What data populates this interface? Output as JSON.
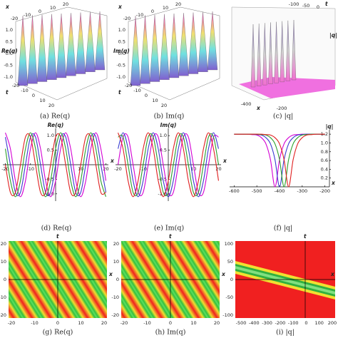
{
  "panels": {
    "a": {
      "caption": "(a) Re(q)",
      "x_label": "x",
      "t_label": "t",
      "z_label": "Re(q)",
      "x_ticks": [
        -20,
        -10,
        0,
        10,
        20
      ],
      "z_ticks": [
        "1.0",
        "0.5",
        "0.0",
        "-0.5",
        "-1.0"
      ],
      "t_ticks": [
        -20,
        -10,
        0,
        10,
        20
      ]
    },
    "b": {
      "caption": "(b) Im(q)",
      "x_label": "x",
      "t_label": "t",
      "z_label": "Im(q)",
      "x_ticks": [
        -20,
        -10,
        0,
        10,
        20
      ],
      "z_ticks": [
        "1.0",
        "0.5",
        "0.0",
        "-0.5",
        "-1.0"
      ],
      "t_ticks": [
        -20,
        -10,
        0,
        10,
        20
      ]
    },
    "c": {
      "caption": "(c) |q|",
      "x_label": "x",
      "t_label": "t",
      "z_label": "|q|",
      "x_ticks": [
        -400,
        -200
      ],
      "t_ticks": [
        -100,
        -50,
        0
      ]
    },
    "g": {
      "caption": "(g) Re(q)",
      "x_label": "x",
      "t_label": "t",
      "x_ticks": [
        -20,
        -10,
        0,
        10,
        20
      ],
      "t_ticks": [
        20,
        10,
        0,
        -10,
        -20
      ]
    },
    "h": {
      "caption": "(h) Im(q)",
      "x_label": "x",
      "t_label": "t",
      "x_ticks": [
        -20,
        -10,
        0,
        10,
        20
      ],
      "t_ticks": [
        20,
        10,
        0,
        -10,
        -20
      ]
    },
    "i": {
      "caption": "(i) |q|",
      "x_label": "x",
      "t_label": "t",
      "x_ticks": [
        -500,
        -400,
        -300,
        -200,
        -100,
        0,
        100,
        200
      ],
      "t_ticks": [
        100,
        50,
        0,
        -50,
        -100
      ]
    }
  },
  "chart_data": [
    {
      "type": "line",
      "caption": "(d) Re(q)",
      "x_label": "x",
      "y_label": "Re(q)",
      "x": [
        -20,
        -18,
        -16,
        -14,
        -12,
        -10,
        -8,
        -6,
        -4,
        -2,
        0,
        2,
        4,
        6,
        8,
        10,
        12,
        14,
        16,
        18,
        20
      ],
      "xlim": [
        -21,
        21
      ],
      "ylim": [
        -1.25,
        1.25
      ],
      "xticks": [
        -20,
        -10,
        10,
        20
      ],
      "yticks": [
        {
          "value": -1,
          "label": "-1.0"
        },
        -0.5,
        0.5,
        {
          "value": 1,
          "label": "1.0"
        }
      ],
      "series": [
        {
          "color": "#d400d4",
          "values": [
            1.1,
            0.55,
            -0.55,
            -1.1,
            -0.55,
            0.55,
            1.1,
            0.55,
            -0.55,
            -1.1,
            -0.55,
            0.55,
            1.1,
            0.55,
            -0.55,
            -1.1,
            -0.55,
            0.55,
            1.1,
            0.55,
            -0.55
          ]
        },
        {
          "color": "#3a3ad0",
          "values": [
            0.95,
            0,
            -0.95,
            -0.95,
            0,
            0.95,
            0.95,
            0,
            -0.95,
            -0.95,
            0,
            0.95,
            0.95,
            0,
            -0.95,
            -0.95,
            0,
            0.95,
            0.95,
            0,
            -0.95
          ]
        },
        {
          "color": "#2ca02c",
          "values": [
            0.55,
            -0.55,
            -1.1,
            -0.55,
            0.55,
            1.1,
            0.55,
            -0.55,
            -1.1,
            -0.55,
            0.55,
            1.1,
            0.55,
            -0.55,
            -1.1,
            -0.55,
            0.55,
            1.1,
            0.55,
            -0.55,
            -1.1
          ]
        },
        {
          "color": "#e02020",
          "values": [
            0,
            -0.95,
            -0.95,
            0,
            0.95,
            0.95,
            0,
            -0.95,
            -0.95,
            0,
            0.95,
            0.95,
            0,
            -0.95,
            -0.95,
            0,
            0.95,
            0.95,
            0,
            -0.95,
            -0.95
          ]
        }
      ]
    },
    {
      "type": "line",
      "caption": "(e) Im(q)",
      "x_label": "x",
      "y_label": "Im(q)",
      "x": [
        -20,
        -18,
        -16,
        -14,
        -12,
        -10,
        -8,
        -6,
        -4,
        -2,
        0,
        2,
        4,
        6,
        8,
        10,
        12,
        14,
        16,
        18,
        20
      ],
      "xlim": [
        -21,
        21
      ],
      "ylim": [
        -1.25,
        1.25
      ],
      "xticks": [
        -20,
        -10,
        10,
        20
      ],
      "yticks": [
        {
          "value": -1,
          "label": "-1.0"
        },
        -0.5,
        0.5,
        {
          "value": 1,
          "label": "1.0"
        }
      ],
      "series": [
        {
          "color": "#d400d4",
          "values": [
            0,
            0.95,
            0.95,
            0,
            -0.95,
            -0.95,
            0,
            0.95,
            0.95,
            0,
            -0.95,
            -0.95,
            0,
            0.95,
            0.95,
            0,
            -0.95,
            -0.95,
            0,
            0.95,
            0.95
          ]
        },
        {
          "color": "#3a3ad0",
          "values": [
            0.55,
            1.1,
            0.55,
            -0.55,
            -1.1,
            -0.55,
            0.55,
            1.1,
            0.55,
            -0.55,
            -1.1,
            -0.55,
            0.55,
            1.1,
            0.55,
            -0.55,
            -1.1,
            -0.55,
            0.55,
            1.1,
            0.55
          ]
        },
        {
          "color": "#2ca02c",
          "values": [
            0.95,
            0.95,
            0,
            -0.95,
            -0.95,
            0,
            0.95,
            0.95,
            0,
            -0.95,
            -0.95,
            0,
            0.95,
            0.95,
            0,
            -0.95,
            -0.95,
            0,
            0.95,
            0.95,
            0
          ]
        },
        {
          "color": "#e02020",
          "values": [
            1.1,
            0.55,
            -0.55,
            -1.1,
            -0.55,
            0.55,
            1.1,
            0.55,
            -0.55,
            -1.1,
            -0.55,
            0.55,
            1.1,
            0.55,
            -0.55,
            -1.1,
            -0.55,
            0.55,
            1.1,
            0.55,
            -0.55
          ]
        }
      ]
    },
    {
      "type": "line",
      "caption": "(f) |q|",
      "x_label": "x",
      "y_label": "|q|",
      "x": [
        -600,
        -580,
        -560,
        -540,
        -520,
        -500,
        -480,
        -460,
        -440,
        -420,
        -400,
        -380,
        -360,
        -340,
        -320,
        -300,
        -280,
        -260,
        -240,
        -220,
        -200
      ],
      "xlim": [
        -620,
        -180
      ],
      "ylim": [
        0,
        1.3
      ],
      "xticks": [
        -600,
        -500,
        -400,
        -300,
        -200
      ],
      "yticks": [
        0.2,
        0.4,
        0.6,
        0.8,
        {
          "value": 1,
          "label": "1.0"
        },
        1.2
      ],
      "series": [
        {
          "color": "#d400d4",
          "values": [
            1.2,
            1.2,
            1.2,
            1.2,
            1.19,
            1.18,
            1.12,
            0.98,
            0.62,
            0,
            0.62,
            0.98,
            1.12,
            1.18,
            1.19,
            1.2,
            1.2,
            1.2,
            1.2,
            1.2,
            1.2
          ]
        },
        {
          "color": "#3a3ad0",
          "values": [
            1.2,
            1.2,
            1.2,
            1.2,
            1.2,
            1.19,
            1.18,
            1.12,
            0.98,
            0.62,
            0,
            0.62,
            0.98,
            1.12,
            1.18,
            1.19,
            1.2,
            1.2,
            1.2,
            1.2,
            1.2
          ]
        },
        {
          "color": "#2ca02c",
          "values": [
            1.2,
            1.2,
            1.2,
            1.2,
            1.2,
            1.2,
            1.19,
            1.18,
            1.12,
            0.98,
            0.62,
            0,
            0.62,
            0.98,
            1.12,
            1.18,
            1.19,
            1.2,
            1.2,
            1.2,
            1.2
          ]
        },
        {
          "color": "#e02020",
          "values": [
            1.2,
            1.2,
            1.2,
            1.2,
            1.2,
            1.2,
            1.2,
            1.19,
            1.18,
            1.12,
            0.98,
            0.62,
            0,
            0.62,
            0.98,
            1.12,
            1.18,
            1.19,
            1.2,
            1.2,
            1.2
          ]
        }
      ]
    }
  ]
}
